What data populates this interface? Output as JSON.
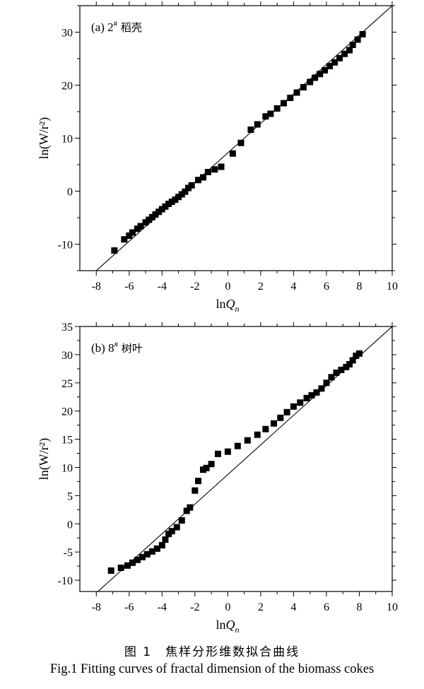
{
  "figure": {
    "caption_cn": "图 1　焦样分形维数拟合曲线",
    "caption_en": "Fig.1  Fitting curves of fractal dimension of the biomass cokes"
  },
  "chart_data": [
    {
      "type": "scatter",
      "panel_label": "(a)  2",
      "sup": "#",
      "sample": " 稻壳",
      "xlabel": "lnQ",
      "xlabel_sub": "n",
      "ylabel": "ln(W/r²)",
      "xlim": [
        -9,
        10
      ],
      "ylim": [
        -15,
        35
      ],
      "xticks": [
        -8,
        -6,
        -4,
        -2,
        0,
        2,
        4,
        6,
        8,
        10
      ],
      "yticks": [
        -10,
        0,
        10,
        20,
        30
      ],
      "fit_line": [
        [
          -8.0,
          -15.0
        ],
        [
          10.0,
          35.0
        ]
      ],
      "series": [
        {
          "marker": "square",
          "color": "#000000",
          "x": [
            -6.9,
            -6.3,
            -6.0,
            -5.8,
            -5.5,
            -5.3,
            -5.0,
            -4.8,
            -4.6,
            -4.4,
            -4.2,
            -4.0,
            -3.8,
            -3.6,
            -3.4,
            -3.2,
            -3.0,
            -2.8,
            -2.6,
            -2.4,
            -2.2,
            -1.8,
            -1.5,
            -1.2,
            -0.8,
            -0.4,
            0.3,
            0.8,
            1.4,
            1.8,
            2.3,
            2.6,
            3.0,
            3.4,
            3.8,
            4.2,
            4.6,
            5.0,
            5.3,
            5.6,
            5.9,
            6.2,
            6.5,
            6.8,
            7.1,
            7.4,
            7.6,
            7.9,
            8.2
          ],
          "y": [
            -11.2,
            -9.1,
            -8.4,
            -7.8,
            -7.1,
            -6.6,
            -5.9,
            -5.4,
            -4.9,
            -4.4,
            -3.9,
            -3.4,
            -2.9,
            -2.4,
            -2.0,
            -1.6,
            -1.1,
            -0.6,
            -0.1,
            0.6,
            1.1,
            2.1,
            2.6,
            3.6,
            4.1,
            4.6,
            7.1,
            9.1,
            11.6,
            12.6,
            14.1,
            14.6,
            15.6,
            16.6,
            17.6,
            18.6,
            19.6,
            20.6,
            21.4,
            22.1,
            22.8,
            23.6,
            24.3,
            25.1,
            25.9,
            26.6,
            27.6,
            28.6,
            29.6
          ]
        }
      ]
    },
    {
      "type": "scatter",
      "panel_label": "(b)  8",
      "sup": "#",
      "sample": " 树叶",
      "xlabel": "lnQ",
      "xlabel_sub": "n",
      "ylabel": "ln(W/r²)",
      "xlim": [
        -9,
        10
      ],
      "ylim": [
        -12,
        35
      ],
      "xticks": [
        -8,
        -6,
        -4,
        -2,
        0,
        2,
        4,
        6,
        8,
        10
      ],
      "yticks": [
        -10,
        -5,
        0,
        5,
        10,
        15,
        20,
        25,
        30,
        35
      ],
      "fit_line": [
        [
          -7.9,
          -12.0
        ],
        [
          10.0,
          35.0
        ]
      ],
      "series": [
        {
          "marker": "square",
          "color": "#000000",
          "x": [
            -7.1,
            -6.5,
            -6.1,
            -5.8,
            -5.5,
            -5.2,
            -4.9,
            -4.6,
            -4.3,
            -4.0,
            -3.8,
            -3.6,
            -3.4,
            -3.1,
            -2.8,
            -2.5,
            -2.3,
            -2.0,
            -1.8,
            -1.5,
            -1.3,
            -1.0,
            -0.6,
            0.0,
            0.6,
            1.2,
            1.8,
            2.3,
            2.8,
            3.2,
            3.6,
            4.0,
            4.4,
            4.8,
            5.1,
            5.4,
            5.7,
            6.0,
            6.3,
            6.6,
            6.9,
            7.2,
            7.4,
            7.6,
            7.8,
            8.0
          ],
          "y": [
            -8.3,
            -7.8,
            -7.4,
            -6.9,
            -6.4,
            -5.9,
            -5.4,
            -4.9,
            -4.4,
            -3.8,
            -2.8,
            -1.8,
            -1.3,
            -0.6,
            0.6,
            2.3,
            2.9,
            5.9,
            7.6,
            9.6,
            9.9,
            10.6,
            12.4,
            12.8,
            13.8,
            14.8,
            15.8,
            16.8,
            17.8,
            18.8,
            19.8,
            20.8,
            21.5,
            22.3,
            22.8,
            23.3,
            24.0,
            25.0,
            26.0,
            26.8,
            27.3,
            27.8,
            28.3,
            29.0,
            29.8,
            30.2
          ]
        }
      ]
    }
  ]
}
